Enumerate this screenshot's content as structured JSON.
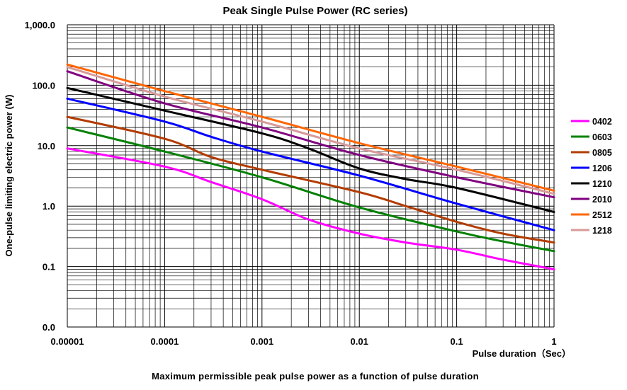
{
  "chart_data": {
    "type": "line",
    "title": "Peak Single Pulse Power (RC series)",
    "caption": "Maximum permissible peak pulse power as a function of pulse duration",
    "xlabel": "Pulse duration（Sec）",
    "ylabel": "One-pulse limiting electric power (W)",
    "xscale": "log",
    "yscale": "log",
    "xlim": [
      1e-05,
      1
    ],
    "ylim": [
      0.01,
      1000
    ],
    "x_ticks": [
      {
        "value": 1e-05,
        "label": "0.00001"
      },
      {
        "value": 0.0001,
        "label": "0.0001"
      },
      {
        "value": 0.001,
        "label": "0.001"
      },
      {
        "value": 0.01,
        "label": "0.01"
      },
      {
        "value": 0.1,
        "label": "0.1"
      },
      {
        "value": 1,
        "label": "1"
      }
    ],
    "y_ticks": [
      {
        "value": 0.01,
        "label": "0.0"
      },
      {
        "value": 0.1,
        "label": "0.1"
      },
      {
        "value": 1,
        "label": "1.0"
      },
      {
        "value": 10,
        "label": "10.0"
      },
      {
        "value": 100,
        "label": "100.0"
      },
      {
        "value": 1000,
        "label": "1,000.0"
      }
    ],
    "grid": true,
    "legend_position": "right",
    "series": [
      {
        "name": "0402",
        "color": "#ff00ff",
        "x": [
          1e-05,
          0.0001,
          0.0003,
          0.001,
          0.003,
          0.01,
          0.03,
          0.1,
          0.3,
          1
        ],
        "y": [
          9,
          4.5,
          2.5,
          1.3,
          0.6,
          0.35,
          0.25,
          0.19,
          0.13,
          0.09
        ]
      },
      {
        "name": "0603",
        "color": "#008000",
        "x": [
          1e-05,
          0.0001,
          0.001,
          0.01,
          0.1,
          0.3,
          1
        ],
        "y": [
          20,
          8,
          3,
          0.95,
          0.38,
          0.26,
          0.18
        ]
      },
      {
        "name": "0805",
        "color": "#b23c00",
        "x": [
          1e-05,
          0.0001,
          0.0003,
          0.001,
          0.01,
          0.03,
          0.1,
          0.3,
          1
        ],
        "y": [
          30,
          13,
          6.5,
          4,
          1.7,
          1,
          0.55,
          0.35,
          0.25
        ]
      },
      {
        "name": "1206",
        "color": "#0000ff",
        "x": [
          1e-05,
          0.0001,
          0.0003,
          0.001,
          0.01,
          0.1,
          1
        ],
        "y": [
          60,
          25,
          14,
          8,
          3.2,
          1.1,
          0.4
        ]
      },
      {
        "name": "1210",
        "color": "#000000",
        "x": [
          1e-05,
          0.0001,
          0.001,
          0.003,
          0.01,
          0.03,
          0.1,
          1
        ],
        "y": [
          90,
          38,
          16,
          9,
          4.2,
          2.8,
          2,
          0.8
        ]
      },
      {
        "name": "2010",
        "color": "#800080",
        "x": [
          1e-05,
          0.0001,
          0.001,
          0.01,
          0.1,
          1
        ],
        "y": [
          170,
          50,
          20,
          7,
          3,
          1.4
        ]
      },
      {
        "name": "2512",
        "color": "#ff6600",
        "x": [
          1e-05,
          0.0001,
          0.001,
          0.01,
          0.1,
          1
        ],
        "y": [
          220,
          80,
          30,
          11,
          4.5,
          1.8
        ]
      },
      {
        "name": "1218",
        "color": "#d89a9a",
        "x": [
          1e-05,
          0.0001,
          0.001,
          0.01,
          0.1,
          1
        ],
        "y": [
          200,
          65,
          25,
          9,
          4,
          1.6
        ]
      }
    ]
  }
}
